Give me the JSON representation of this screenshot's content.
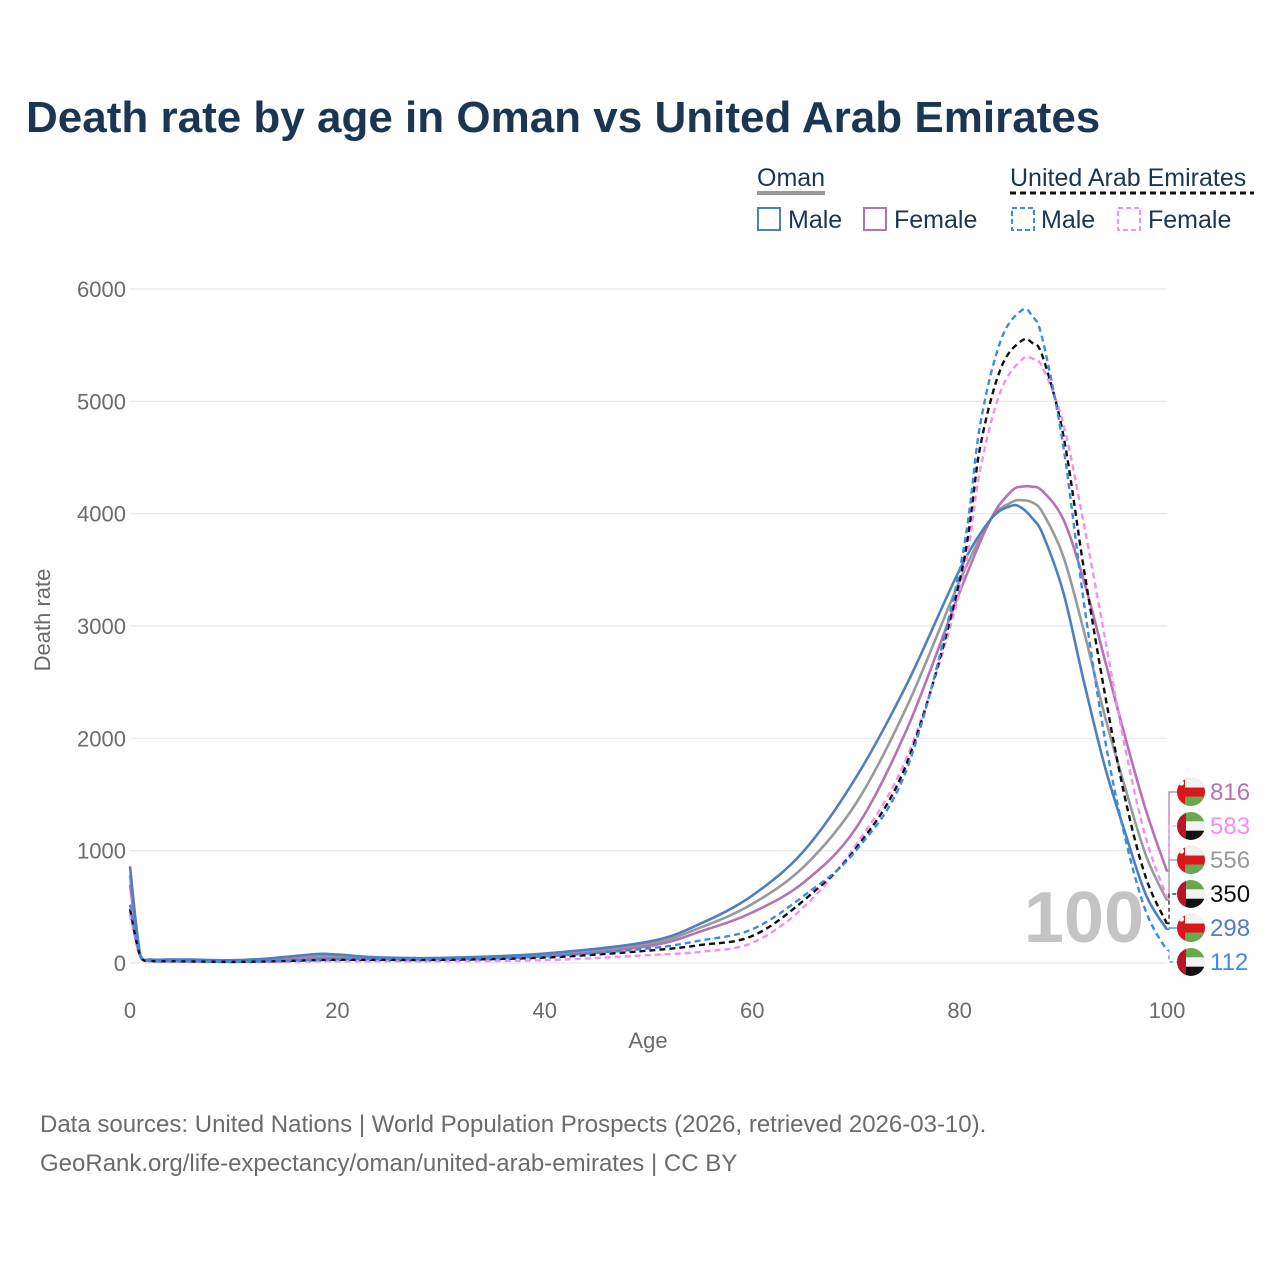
{
  "colors": {
    "oman_total": "#999999",
    "oman_male": "#4f7ec1",
    "oman_female": "#b473b2",
    "uae_total": "#111111",
    "uae_male": "#3c8be6",
    "uae_female": "#f68df0",
    "title": "#1c3553",
    "muted": "#6b6b6b"
  },
  "chart_data": {
    "type": "line",
    "title": "Death rate by age in Oman vs United Arab Emirates",
    "xlabel": "Age",
    "ylabel": "Death rate",
    "xlim": [
      0,
      100
    ],
    "ylim": [
      0,
      6000
    ],
    "x_ticks": [
      0,
      20,
      40,
      60,
      80,
      100
    ],
    "y_ticks": [
      0,
      1000,
      2000,
      3000,
      4000,
      5000,
      6000
    ],
    "grid": true,
    "current_age": "100",
    "legend": {
      "groups": [
        {
          "name": "Oman",
          "items": [
            "Male",
            "Female"
          ]
        },
        {
          "name": "United Arab Emirates",
          "items": [
            "Male",
            "Female"
          ]
        }
      ]
    },
    "series": [
      {
        "key": "oman_male",
        "country": "Oman",
        "sex": "Male",
        "dashed": false,
        "points": [
          [
            0,
            860
          ],
          [
            1,
            70
          ],
          [
            2,
            30
          ],
          [
            4,
            32
          ],
          [
            6,
            30
          ],
          [
            10,
            25
          ],
          [
            14,
            45
          ],
          [
            18,
            80
          ],
          [
            20,
            75
          ],
          [
            24,
            50
          ],
          [
            30,
            45
          ],
          [
            40,
            85
          ],
          [
            50,
            190
          ],
          [
            55,
            350
          ],
          [
            60,
            600
          ],
          [
            65,
            1000
          ],
          [
            70,
            1650
          ],
          [
            75,
            2500
          ],
          [
            80,
            3500
          ],
          [
            83,
            3950
          ],
          [
            85,
            4070
          ],
          [
            86,
            4050
          ],
          [
            87,
            3960
          ],
          [
            88,
            3820
          ],
          [
            90,
            3300
          ],
          [
            92,
            2500
          ],
          [
            94,
            1750
          ],
          [
            96,
            1150
          ],
          [
            98,
            600
          ],
          [
            100,
            298
          ]
        ]
      },
      {
        "key": "oman_female",
        "country": "Oman",
        "sex": "Female",
        "dashed": false,
        "points": [
          [
            0,
            700
          ],
          [
            1,
            60
          ],
          [
            2,
            25
          ],
          [
            4,
            25
          ],
          [
            6,
            22
          ],
          [
            10,
            18
          ],
          [
            14,
            25
          ],
          [
            18,
            40
          ],
          [
            20,
            40
          ],
          [
            24,
            35
          ],
          [
            30,
            30
          ],
          [
            40,
            60
          ],
          [
            50,
            150
          ],
          [
            55,
            280
          ],
          [
            60,
            450
          ],
          [
            65,
            720
          ],
          [
            70,
            1200
          ],
          [
            75,
            2100
          ],
          [
            80,
            3300
          ],
          [
            83,
            3950
          ],
          [
            85,
            4200
          ],
          [
            86,
            4240
          ],
          [
            87,
            4240
          ],
          [
            88,
            4200
          ],
          [
            90,
            3950
          ],
          [
            92,
            3400
          ],
          [
            94,
            2700
          ],
          [
            96,
            2000
          ],
          [
            98,
            1350
          ],
          [
            100,
            816
          ]
        ]
      },
      {
        "key": "oman_total",
        "country": "Oman",
        "sex": "Total",
        "dashed": false,
        "points": [
          [
            0,
            780
          ],
          [
            1,
            65
          ],
          [
            2,
            28
          ],
          [
            4,
            28
          ],
          [
            6,
            26
          ],
          [
            10,
            22
          ],
          [
            14,
            35
          ],
          [
            18,
            60
          ],
          [
            20,
            58
          ],
          [
            24,
            42
          ],
          [
            30,
            38
          ],
          [
            40,
            70
          ],
          [
            50,
            170
          ],
          [
            55,
            315
          ],
          [
            60,
            525
          ],
          [
            65,
            860
          ],
          [
            70,
            1420
          ],
          [
            75,
            2300
          ],
          [
            80,
            3400
          ],
          [
            83,
            3950
          ],
          [
            85,
            4100
          ],
          [
            86,
            4120
          ],
          [
            87,
            4100
          ],
          [
            88,
            4010
          ],
          [
            90,
            3620
          ],
          [
            92,
            2950
          ],
          [
            94,
            2200
          ],
          [
            96,
            1550
          ],
          [
            98,
            950
          ],
          [
            100,
            556
          ]
        ]
      },
      {
        "key": "uae_male",
        "country": "United Arab Emirates",
        "sex": "Male",
        "dashed": true,
        "points": [
          [
            0,
            520
          ],
          [
            1,
            60
          ],
          [
            2,
            20
          ],
          [
            4,
            18
          ],
          [
            6,
            15
          ],
          [
            10,
            12
          ],
          [
            14,
            18
          ],
          [
            18,
            30
          ],
          [
            20,
            35
          ],
          [
            24,
            35
          ],
          [
            30,
            35
          ],
          [
            40,
            60
          ],
          [
            50,
            130
          ],
          [
            55,
            200
          ],
          [
            60,
            300
          ],
          [
            65,
            600
          ],
          [
            70,
            1000
          ],
          [
            75,
            1750
          ],
          [
            80,
            3500
          ],
          [
            82,
            4800
          ],
          [
            84,
            5550
          ],
          [
            86,
            5810
          ],
          [
            87,
            5760
          ],
          [
            88,
            5550
          ],
          [
            90,
            4600
          ],
          [
            92,
            3200
          ],
          [
            94,
            2000
          ],
          [
            96,
            1100
          ],
          [
            98,
            450
          ],
          [
            100,
            112
          ]
        ]
      },
      {
        "key": "uae_female",
        "country": "United Arab Emirates",
        "sex": "Female",
        "dashed": true,
        "points": [
          [
            0,
            430
          ],
          [
            1,
            50
          ],
          [
            2,
            15
          ],
          [
            4,
            12
          ],
          [
            6,
            10
          ],
          [
            10,
            8
          ],
          [
            14,
            10
          ],
          [
            18,
            15
          ],
          [
            20,
            15
          ],
          [
            24,
            15
          ],
          [
            30,
            15
          ],
          [
            40,
            25
          ],
          [
            50,
            70
          ],
          [
            55,
            100
          ],
          [
            60,
            180
          ],
          [
            65,
            500
          ],
          [
            70,
            1050
          ],
          [
            75,
            1850
          ],
          [
            80,
            3300
          ],
          [
            82,
            4400
          ],
          [
            84,
            5100
          ],
          [
            86,
            5370
          ],
          [
            87,
            5380
          ],
          [
            88,
            5300
          ],
          [
            90,
            4800
          ],
          [
            92,
            3900
          ],
          [
            94,
            2900
          ],
          [
            96,
            1900
          ],
          [
            98,
            1100
          ],
          [
            100,
            583
          ]
        ]
      },
      {
        "key": "uae_total",
        "country": "United Arab Emirates",
        "sex": "Total",
        "dashed": true,
        "points": [
          [
            0,
            480
          ],
          [
            1,
            55
          ],
          [
            2,
            18
          ],
          [
            4,
            15
          ],
          [
            6,
            13
          ],
          [
            10,
            10
          ],
          [
            14,
            15
          ],
          [
            18,
            25
          ],
          [
            20,
            28
          ],
          [
            24,
            28
          ],
          [
            30,
            28
          ],
          [
            40,
            48
          ],
          [
            50,
            110
          ],
          [
            55,
            160
          ],
          [
            60,
            240
          ],
          [
            65,
            560
          ],
          [
            70,
            1020
          ],
          [
            75,
            1800
          ],
          [
            80,
            3400
          ],
          [
            82,
            4600
          ],
          [
            84,
            5300
          ],
          [
            86,
            5540
          ],
          [
            87,
            5520
          ],
          [
            88,
            5400
          ],
          [
            90,
            4700
          ],
          [
            92,
            3500
          ],
          [
            94,
            2400
          ],
          [
            96,
            1450
          ],
          [
            98,
            750
          ],
          [
            100,
            350
          ]
        ]
      }
    ],
    "end_labels": [
      {
        "key": "oman_female",
        "value": "816",
        "flag": "oman"
      },
      {
        "key": "uae_female",
        "value": "583",
        "flag": "uae"
      },
      {
        "key": "oman_total",
        "value": "556",
        "flag": "oman"
      },
      {
        "key": "uae_total",
        "value": "350",
        "flag": "uae"
      },
      {
        "key": "oman_male",
        "value": "298",
        "flag": "oman"
      },
      {
        "key": "uae_male",
        "value": "112",
        "flag": "uae"
      }
    ]
  },
  "source_line_1": "Data sources: United Nations | World Population Prospects (2026, retrieved 2026-03-10).",
  "source_line_2": "GeoRank.org/life-expectancy/oman/united-arab-emirates | CC BY"
}
